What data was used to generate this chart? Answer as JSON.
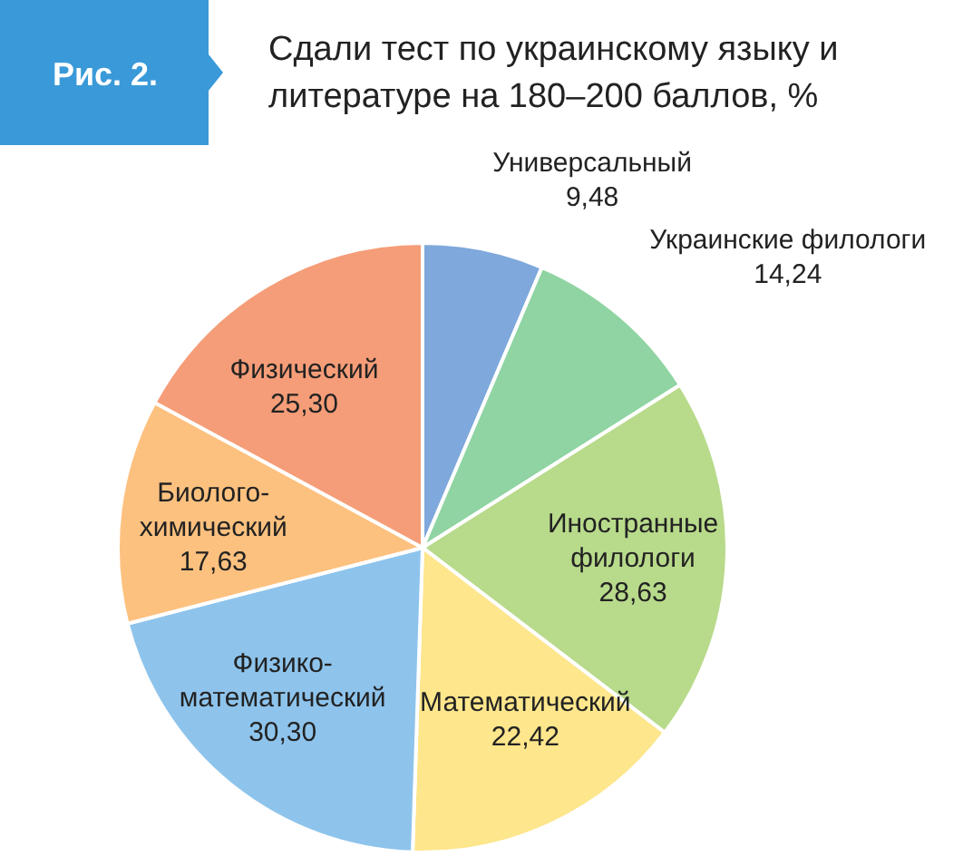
{
  "chart_data": {
    "type": "pie",
    "title": "Сдали тест по украинскому языку и литературе на 180–200 баллов, %",
    "annotations": [
      "Рис. 2."
    ],
    "categories": [
      "Универсальный",
      "Украинские филологи",
      "Иностранные филологи",
      "Математический",
      "Физико-математический",
      "Биолого-химический",
      "Физический"
    ],
    "values": [
      9.48,
      14.24,
      28.63,
      22.42,
      30.3,
      17.63,
      25.3
    ],
    "colors": [
      "#7fa8dc",
      "#8fd4a2",
      "#b8da8b",
      "#fde68c",
      "#8ec4ec",
      "#fdc17f",
      "#f59d78"
    ],
    "value_labels": [
      "9,48",
      "14,24",
      "28,63",
      "22,42",
      "30,30",
      "17,63",
      "25,30"
    ]
  }
}
